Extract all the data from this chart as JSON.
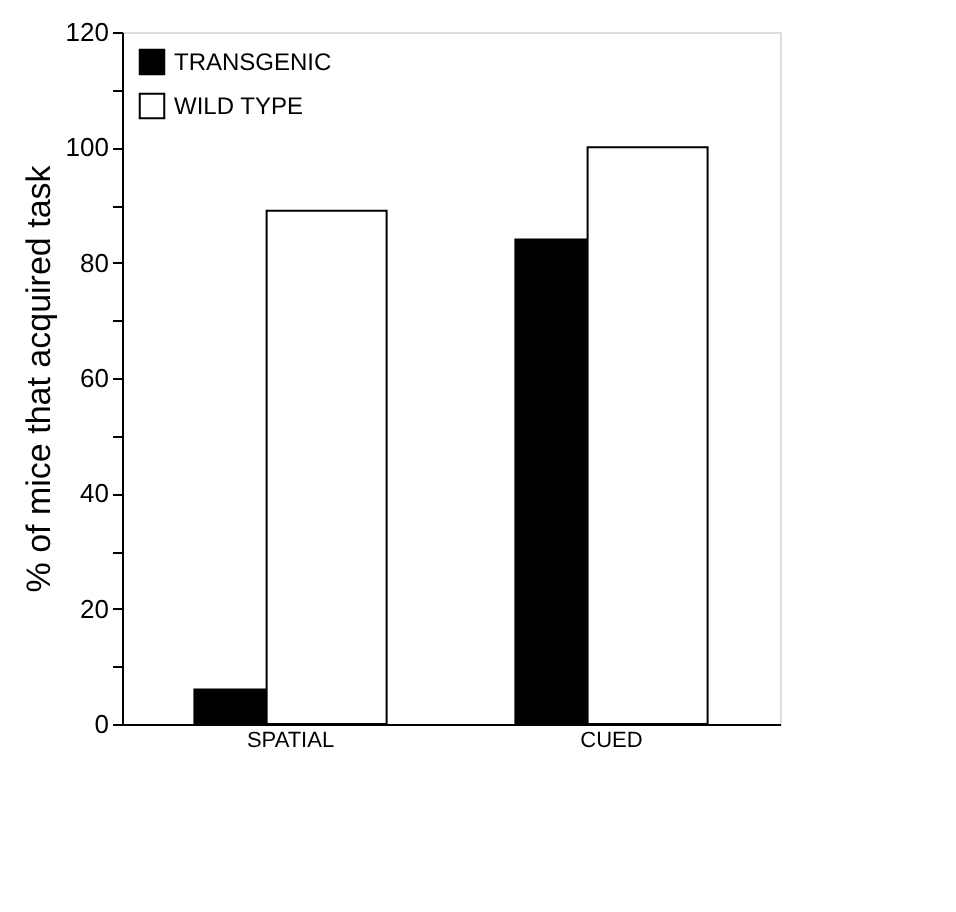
{
  "chart_data": {
    "type": "bar",
    "ylabel": "% of mice that acquired task",
    "categories": [
      "SPATIAL",
      "CUED"
    ],
    "series": [
      {
        "name": "TRANSGENIC",
        "color": "#000000",
        "values": [
          6,
          84
        ]
      },
      {
        "name": "WILD TYPE",
        "color": "#ffffff",
        "values": [
          89,
          100
        ]
      }
    ],
    "ylim": [
      0,
      120
    ],
    "yticks": [
      0,
      {
        "value": 10,
        "label": null
      },
      20,
      {
        "value": 30,
        "label": null
      },
      40,
      {
        "value": 50,
        "label": null
      },
      60,
      {
        "value": 70,
        "label": null
      },
      80,
      {
        "value": 90,
        "label": null
      },
      100,
      {
        "value": 110,
        "label": null
      },
      120
    ],
    "legend": "top left",
    "grid": false
  }
}
